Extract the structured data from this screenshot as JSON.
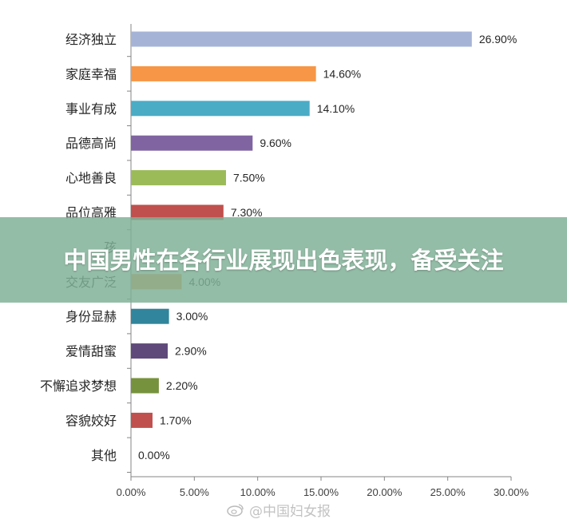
{
  "chart_data": {
    "type": "bar",
    "orientation": "horizontal",
    "categories": [
      "经济独立",
      "家庭幸福",
      "事业有成",
      "品德高尚",
      "心地善良",
      "品位高雅",
      "孩",
      "交友广泛",
      "身份显赫",
      "爱情甜蜜",
      "不懈追求梦想",
      "容貌姣好",
      "其他"
    ],
    "values": [
      26.9,
      14.6,
      14.1,
      9.6,
      7.5,
      7.3,
      null,
      4.0,
      3.0,
      2.9,
      2.2,
      1.7,
      0.0
    ],
    "value_labels": [
      "26.90%",
      "14.60%",
      "14.10%",
      "9.60%",
      "7.50%",
      "7.30%",
      "",
      "4.00%",
      "3.00%",
      "2.90%",
      "2.20%",
      "1.70%",
      "0.00%"
    ],
    "colors": [
      "#a5b4d6",
      "#f79646",
      "#4bacc6",
      "#8064a2",
      "#9bbb59",
      "#c0504d",
      "#a5b4d6",
      "#f79646",
      "#31859c",
      "#5f497a",
      "#76923c",
      "#c0504d",
      "#a5b4d6"
    ],
    "xlim": [
      0,
      30
    ],
    "xticks": [
      "0.00%",
      "5.00%",
      "10.00%",
      "15.00%",
      "20.00%",
      "25.00%",
      "30.00%"
    ],
    "grid": false,
    "legend": "none"
  },
  "banner": {
    "title": "中国男性在各行业展现出色表现，备受关注"
  },
  "watermark": {
    "text": "@中国妇女报",
    "icon": "weibo-icon"
  }
}
